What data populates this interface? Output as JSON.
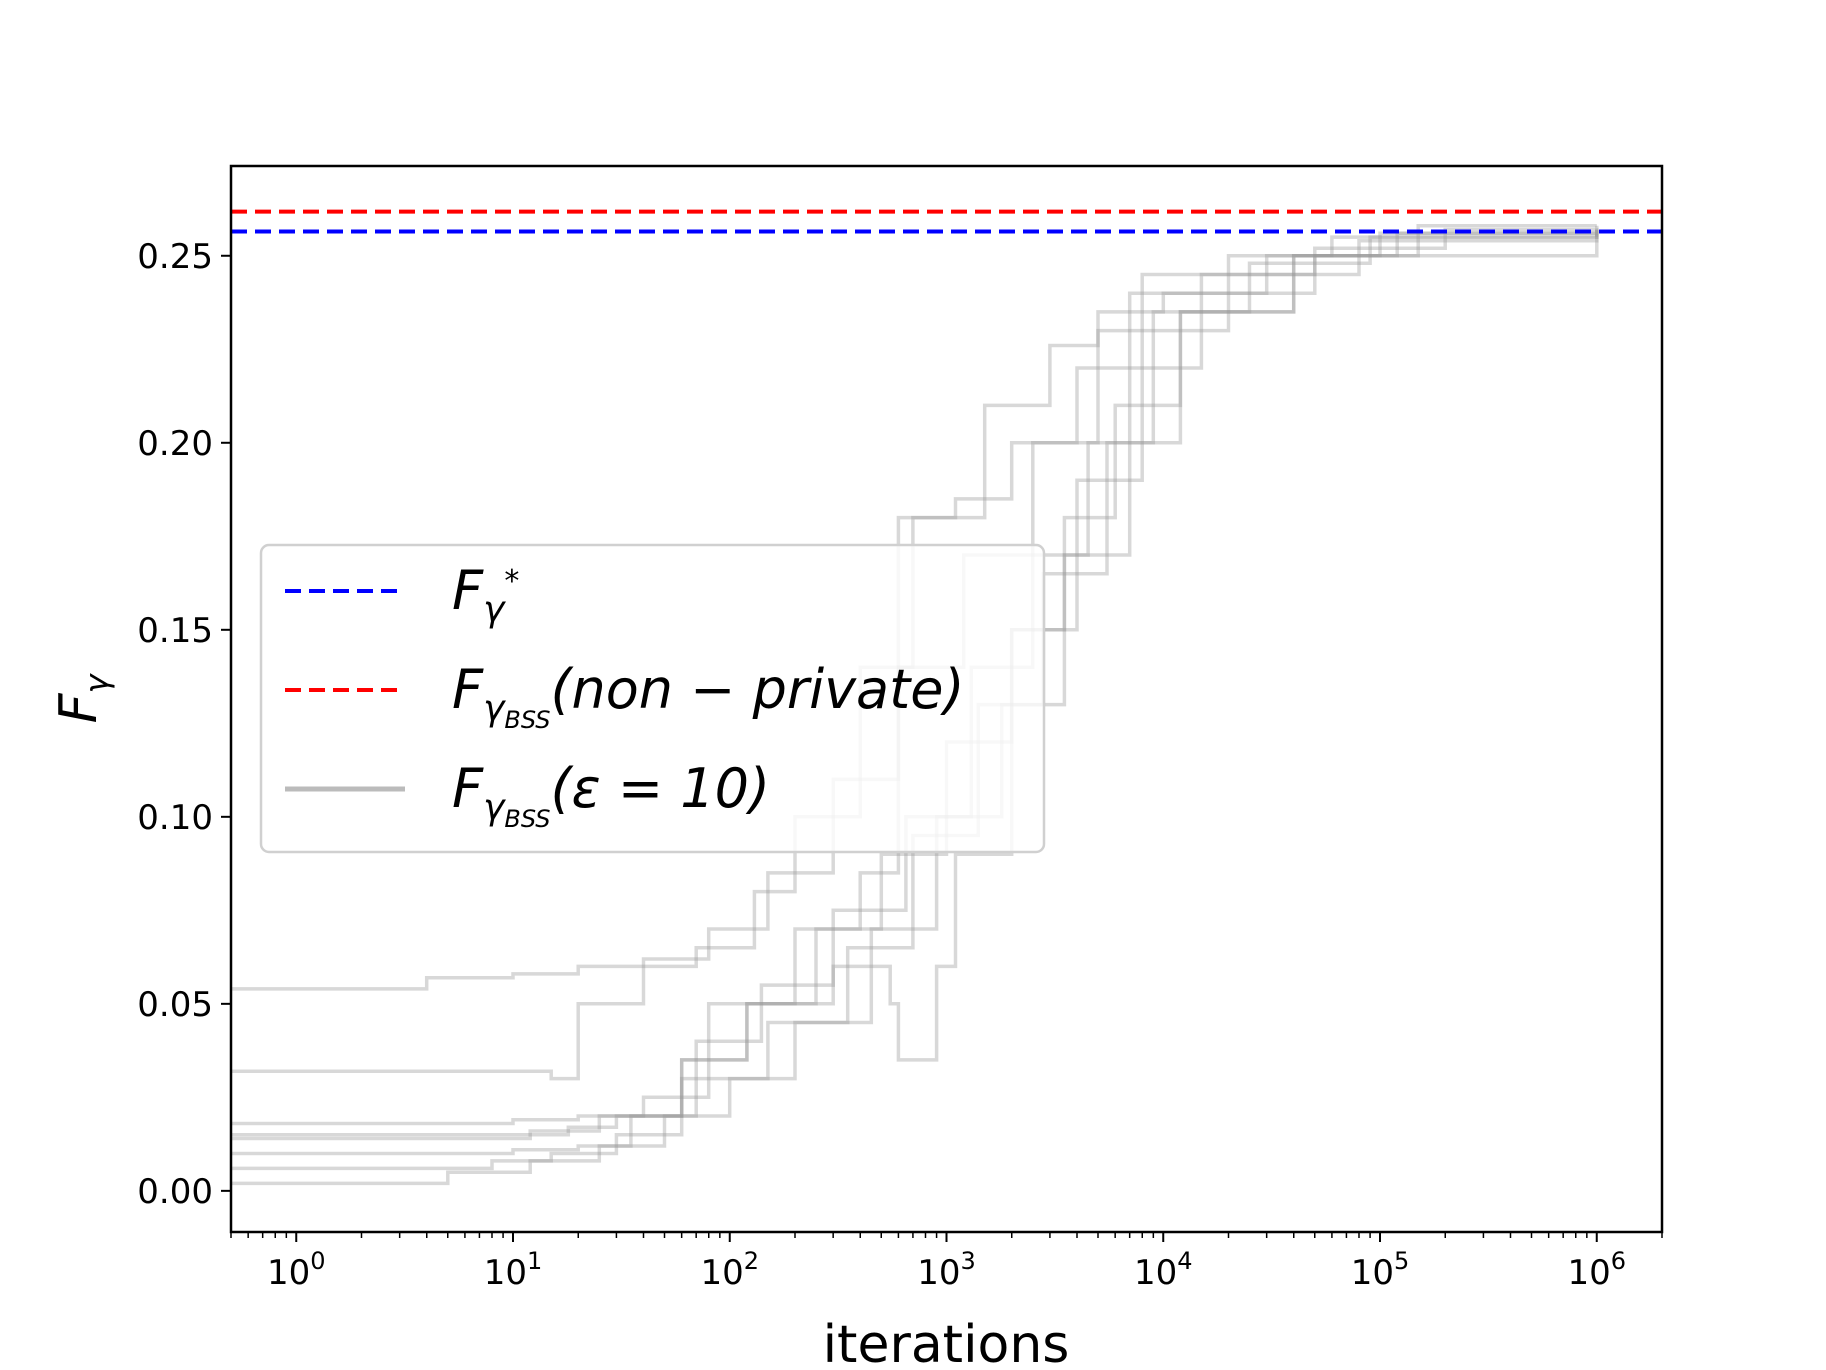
{
  "chart_data": {
    "type": "line",
    "xlabel": "iterations",
    "ylabel": "F_γ",
    "x_scale": "log",
    "xlim": [
      0.5,
      2000000
    ],
    "ylim": [
      -0.011,
      0.274
    ],
    "x_ticks": [
      {
        "value": 1,
        "base": "10",
        "exp": "0"
      },
      {
        "value": 10,
        "base": "10",
        "exp": "1"
      },
      {
        "value": 100,
        "base": "10",
        "exp": "2"
      },
      {
        "value": 1000,
        "base": "10",
        "exp": "3"
      },
      {
        "value": 10000,
        "base": "10",
        "exp": "4"
      },
      {
        "value": 100000,
        "base": "10",
        "exp": "5"
      },
      {
        "value": 1000000,
        "base": "10",
        "exp": "6"
      }
    ],
    "y_ticks": [
      {
        "value": 0.0,
        "label": "0.00"
      },
      {
        "value": 0.05,
        "label": "0.05"
      },
      {
        "value": 0.1,
        "label": "0.10"
      },
      {
        "value": 0.15,
        "label": "0.15"
      },
      {
        "value": 0.2,
        "label": "0.20"
      },
      {
        "value": 0.25,
        "label": "0.25"
      }
    ],
    "hlines": [
      {
        "name": "F_γ*",
        "y": 0.2565,
        "color": "#0000ff",
        "style": "dashed"
      },
      {
        "name": "F_γBSS(non − private)",
        "y": 0.2618,
        "color": "#ff0000",
        "style": "dashed"
      }
    ],
    "legend": {
      "placement": "center-left",
      "entries": [
        {
          "base": "F",
          "sub": "γ",
          "sup": "*",
          "suffix": "",
          "color": "#0000ff",
          "style": "dashed"
        },
        {
          "base": "F",
          "sub": "γ",
          "subsub": "BSS",
          "suffix": "(non − private)",
          "color": "#ff0000",
          "style": "dashed"
        },
        {
          "base": "F",
          "sub": "γ",
          "subsub": "BSS",
          "suffix": "(ε = 10)",
          "color": "#bbbbbb",
          "style": "solid"
        }
      ]
    },
    "series": [
      {
        "x": [
          0.5,
          3,
          4,
          10,
          20,
          40,
          80,
          150,
          300,
          600,
          1200,
          2500,
          5000,
          8000,
          20000,
          60000,
          150000,
          1000000
        ],
        "y": [
          0.054,
          0.054,
          0.057,
          0.058,
          0.06,
          0.062,
          0.07,
          0.085,
          0.11,
          0.14,
          0.17,
          0.2,
          0.23,
          0.245,
          0.25,
          0.255,
          0.258,
          0.258
        ]
      },
      {
        "x": [
          0.5,
          10,
          15,
          20,
          40,
          70,
          130,
          200,
          400,
          700,
          1100,
          2000,
          4000,
          7000,
          15000,
          50000,
          200000,
          1000000
        ],
        "y": [
          0.032,
          0.032,
          0.03,
          0.05,
          0.06,
          0.065,
          0.08,
          0.1,
          0.14,
          0.18,
          0.185,
          0.2,
          0.22,
          0.24,
          0.245,
          0.252,
          0.257,
          0.256
        ]
      },
      {
        "x": [
          0.5,
          5,
          12,
          25,
          60,
          120,
          300,
          550,
          600,
          900,
          1100,
          2000,
          3500,
          6000,
          12000,
          40000,
          120000,
          1000000
        ],
        "y": [
          0.014,
          0.014,
          0.016,
          0.02,
          0.035,
          0.05,
          0.06,
          0.05,
          0.035,
          0.06,
          0.09,
          0.15,
          0.18,
          0.21,
          0.235,
          0.25,
          0.256,
          0.255
        ]
      },
      {
        "x": [
          0.5,
          3,
          10,
          20,
          40,
          80,
          200,
          400,
          600,
          800,
          1500,
          3000,
          5000,
          10000,
          30000,
          100000,
          1000000
        ],
        "y": [
          0.018,
          0.018,
          0.019,
          0.02,
          0.025,
          0.05,
          0.07,
          0.085,
          0.18,
          0.18,
          0.21,
          0.226,
          0.235,
          0.24,
          0.25,
          0.256,
          0.257
        ]
      },
      {
        "x": [
          0.5,
          3,
          10,
          20,
          35,
          60,
          120,
          250,
          500,
          1000,
          2000,
          4000,
          8000,
          20000,
          80000,
          1000000
        ],
        "y": [
          0.01,
          0.01,
          0.011,
          0.012,
          0.02,
          0.035,
          0.05,
          0.07,
          0.09,
          0.12,
          0.15,
          0.19,
          0.23,
          0.245,
          0.254,
          0.258
        ]
      },
      {
        "x": [
          0.5,
          2,
          8,
          15,
          30,
          60,
          150,
          350,
          700,
          1400,
          2800,
          5500,
          12000,
          40000,
          150000,
          1000000
        ],
        "y": [
          0.006,
          0.006,
          0.008,
          0.01,
          0.015,
          0.03,
          0.045,
          0.065,
          0.095,
          0.13,
          0.165,
          0.2,
          0.235,
          0.25,
          0.255,
          0.257
        ]
      },
      {
        "x": [
          0.5,
          2,
          5,
          12,
          25,
          50,
          100,
          200,
          450,
          900,
          1800,
          3500,
          7000,
          15000,
          50000,
          1000000
        ],
        "y": [
          0.002,
          0.002,
          0.005,
          0.008,
          0.012,
          0.02,
          0.03,
          0.045,
          0.07,
          0.1,
          0.13,
          0.17,
          0.22,
          0.24,
          0.25,
          0.256
        ]
      },
      {
        "x": [
          0.5,
          4,
          10,
          18,
          30,
          70,
          140,
          300,
          650,
          1300,
          2500,
          4500,
          9000,
          25000,
          90000,
          1000000
        ],
        "y": [
          0.015,
          0.015,
          0.015,
          0.017,
          0.02,
          0.04,
          0.055,
          0.075,
          0.1,
          0.14,
          0.17,
          0.2,
          0.235,
          0.248,
          0.255,
          0.257
        ]
      }
    ]
  }
}
